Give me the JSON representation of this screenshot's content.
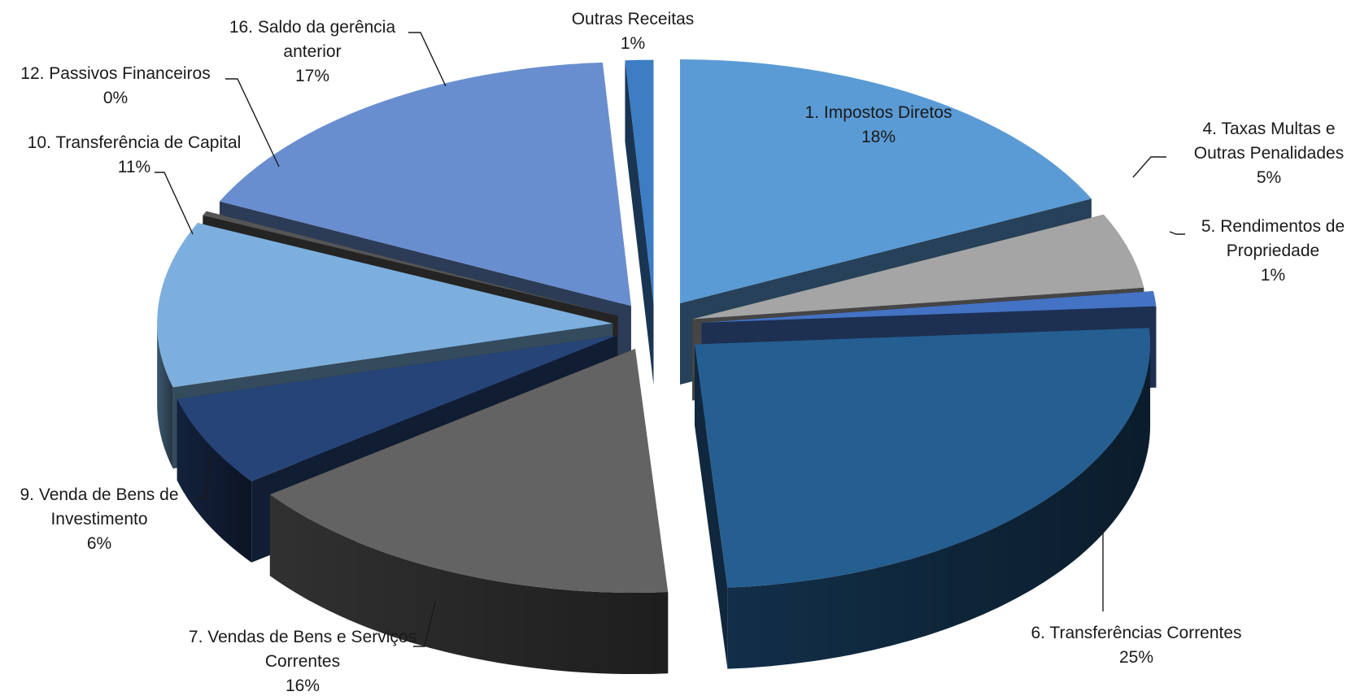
{
  "chart_data": {
    "type": "pie",
    "style": "3d-exploded",
    "title": "",
    "legend": "none",
    "slices": [
      {
        "name": "1. Impostos Diretos",
        "value": 18,
        "label": "18%",
        "color": "#5b9bd5"
      },
      {
        "name": "4. Taxas Multas e Outras Penalidades",
        "value": 5,
        "label": "5%",
        "color": "#a5a5a5"
      },
      {
        "name": "5. Rendimentos de Propriedade",
        "value": 1,
        "label": "1%",
        "color": "#4472c4"
      },
      {
        "name": "6. Transferências Correntes",
        "value": 25,
        "label": "25%",
        "color": "#255e91"
      },
      {
        "name": "7. Vendas de Bens e Serviços Correntes",
        "value": 16,
        "label": "16%",
        "color": "#636363"
      },
      {
        "name": "9. Venda de Bens de Investimento",
        "value": 6,
        "label": "6%",
        "color": "#264478"
      },
      {
        "name": "10. Transferência de Capital",
        "value": 11,
        "label": "11%",
        "color": "#7cafdd"
      },
      {
        "name": "12. Passivos Financeiros",
        "value": 0,
        "label": "0%",
        "color": "#555555"
      },
      {
        "name": "16. Saldo da gerência anterior",
        "value": 17,
        "label": "17%",
        "color": "#698ed0"
      },
      {
        "name": "Outras Receitas",
        "value": 1,
        "label": "1%",
        "color": "#3c7dc4"
      }
    ]
  },
  "labels": [
    {
      "lines": [
        "Outras Receitas",
        "1%"
      ]
    },
    {
      "lines": [
        "1. Impostos Diretos",
        "18%"
      ]
    },
    {
      "lines": [
        "4. Taxas Multas e",
        "Outras Penalidades",
        "5%"
      ]
    },
    {
      "lines": [
        "5. Rendimentos de",
        "Propriedade",
        "1%"
      ]
    },
    {
      "lines": [
        "6. Transferências Correntes",
        "25%"
      ]
    },
    {
      "lines": [
        "7. Vendas de Bens e Serviços",
        "Correntes",
        "16%"
      ]
    },
    {
      "lines": [
        "9. Venda de Bens de",
        "Investimento",
        "6%"
      ]
    },
    {
      "lines": [
        "10. Transferência de Capital",
        "11%"
      ]
    },
    {
      "lines": [
        "12. Passivos Financeiros",
        "0%"
      ]
    },
    {
      "lines": [
        "16. Saldo da gerência",
        "anterior",
        "17%"
      ]
    }
  ]
}
